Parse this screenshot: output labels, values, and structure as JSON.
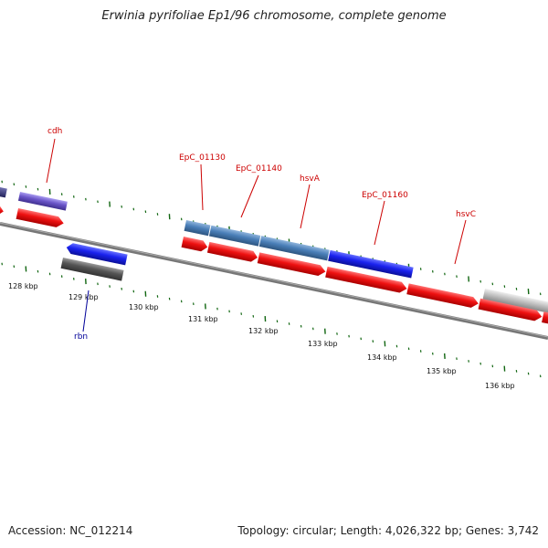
{
  "title": "Erwinia pyrifoliae Ep1/96 chromosome, complete genome",
  "footer": {
    "accession": "Accession: NC_012214",
    "summary": "Topology: circular; Length: 4,026,322 bp; Genes: 3,742"
  },
  "colors": {
    "cds_red": "#ee1111",
    "gene_blue": "#1a22ee",
    "gene_steel": "#4a7fb8",
    "gene_purple": "#6a55c8",
    "pseudo_gray": "#555555",
    "light_gray": "#bbbbbb",
    "gene_label_red": "#cc0000",
    "gene_label_blue": "#000099",
    "tick_green": "#116611",
    "backbone": "#777777"
  },
  "scale_labels": [
    "128 kbp",
    "129 kbp",
    "130 kbp",
    "131 kbp",
    "132 kbp",
    "133 kbp",
    "134 kbp",
    "135 kbp",
    "136 kbp"
  ],
  "gene_labels": [
    {
      "text": "cdh",
      "color": "red"
    },
    {
      "text": "EpC_01130",
      "color": "red"
    },
    {
      "text": "EpC_01140",
      "color": "red"
    },
    {
      "text": "hsvA",
      "color": "red"
    },
    {
      "text": "EpC_01160",
      "color": "red"
    },
    {
      "text": "hsvC",
      "color": "red"
    },
    {
      "text": "rbn",
      "color": "blue"
    }
  ]
}
